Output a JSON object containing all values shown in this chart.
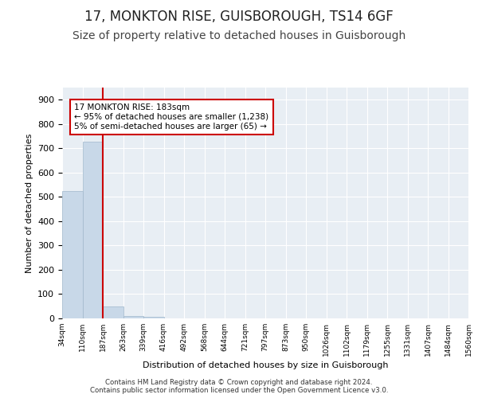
{
  "title": "17, MONKTON RISE, GUISBOROUGH, TS14 6GF",
  "subtitle": "Size of property relative to detached houses in Guisborough",
  "xlabel": "Distribution of detached houses by size in Guisborough",
  "ylabel": "Number of detached properties",
  "bin_labels": [
    "34sqm",
    "110sqm",
    "187sqm",
    "263sqm",
    "339sqm",
    "416sqm",
    "492sqm",
    "568sqm",
    "644sqm",
    "721sqm",
    "797sqm",
    "873sqm",
    "950sqm",
    "1026sqm",
    "1102sqm",
    "1179sqm",
    "1255sqm",
    "1331sqm",
    "1407sqm",
    "1484sqm",
    "1560sqm"
  ],
  "bar_values": [
    525,
    727,
    50,
    10,
    5,
    0,
    0,
    0,
    0,
    0,
    0,
    0,
    0,
    0,
    0,
    0,
    0,
    0,
    0,
    0
  ],
  "bar_color": "#c8d8e8",
  "bar_edge_color": "#a0b8cc",
  "vline_x_bar_index": 1.5,
  "vline_color": "#cc0000",
  "annotation_text": "17 MONKTON RISE: 183sqm\n← 95% of detached houses are smaller (1,238)\n5% of semi-detached houses are larger (65) →",
  "annotation_box_color": "#ffffff",
  "annotation_box_edge_color": "#cc0000",
  "ylim": [
    0,
    950
  ],
  "yticks": [
    0,
    100,
    200,
    300,
    400,
    500,
    600,
    700,
    800,
    900
  ],
  "background_color": "#e8eef4",
  "footer_text": "Contains HM Land Registry data © Crown copyright and database right 2024.\nContains public sector information licensed under the Open Government Licence v3.0.",
  "title_fontsize": 12,
  "subtitle_fontsize": 10
}
